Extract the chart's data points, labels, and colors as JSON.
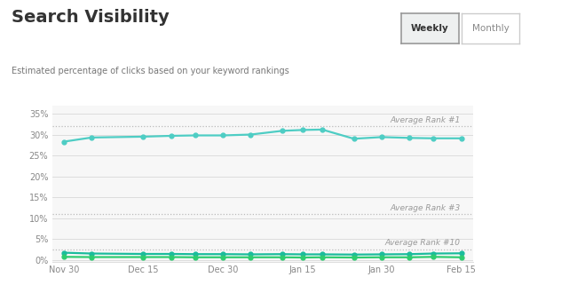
{
  "title": "Search Visibility",
  "subtitle": "Estimated percentage of clicks based on your keyword rankings",
  "button_weekly": "Weekly",
  "button_monthly": "Monthly",
  "x_labels": [
    "Nov 30",
    "Dec 15",
    "Dec 30",
    "Jan 15",
    "Jan 30",
    "Feb 15"
  ],
  "x_positions": [
    0,
    2,
    4,
    6,
    8,
    10
  ],
  "blue_line": {
    "x": [
      0,
      0.7,
      2,
      2.7,
      3.3,
      4,
      4.7,
      5.5,
      6,
      6.5,
      7.3,
      8,
      8.7,
      9.3,
      10
    ],
    "y": [
      28.3,
      29.3,
      29.5,
      29.7,
      29.8,
      29.8,
      30.0,
      30.9,
      31.1,
      31.2,
      29.0,
      29.4,
      29.2,
      29.1,
      29.1
    ],
    "color": "#4ecdc4",
    "linewidth": 1.6,
    "marker": "o",
    "markersize": 3.5
  },
  "teal_line": {
    "x": [
      0,
      0.7,
      2,
      2.7,
      3.3,
      4,
      4.7,
      5.5,
      6,
      6.5,
      7.3,
      8,
      8.7,
      9.3,
      10
    ],
    "y": [
      1.7,
      1.5,
      1.4,
      1.4,
      1.35,
      1.35,
      1.3,
      1.35,
      1.3,
      1.3,
      1.25,
      1.3,
      1.35,
      1.5,
      1.55
    ],
    "color": "#1abc9c",
    "linewidth": 1.6,
    "marker": "o",
    "markersize": 3.5
  },
  "green_line": {
    "x": [
      0,
      0.7,
      2,
      2.7,
      3.3,
      4,
      4.7,
      5.5,
      6,
      6.5,
      7.3,
      8,
      8.7,
      9.3,
      10
    ],
    "y": [
      0.7,
      0.65,
      0.65,
      0.65,
      0.6,
      0.6,
      0.6,
      0.6,
      0.55,
      0.6,
      0.55,
      0.6,
      0.6,
      0.7,
      0.6
    ],
    "color": "#2ecc71",
    "linewidth": 1.6,
    "marker": "o",
    "markersize": 3.5
  },
  "ref_lines": [
    {
      "y": 32.0,
      "label": "Average Rank #1"
    },
    {
      "y": 11.0,
      "label": "Average Rank #3"
    },
    {
      "y": 2.5,
      "label": "Average Rank #10"
    }
  ],
  "ylim": [
    -0.5,
    37
  ],
  "yticks": [
    0,
    5,
    10,
    15,
    20,
    25,
    30,
    35
  ],
  "background_color": "#ffffff",
  "plot_bg_color": "#f7f7f7",
  "grid_color": "#dddddd",
  "title_fontsize": 14,
  "subtitle_fontsize": 7,
  "tick_fontsize": 7,
  "ref_label_fontsize": 6.5
}
